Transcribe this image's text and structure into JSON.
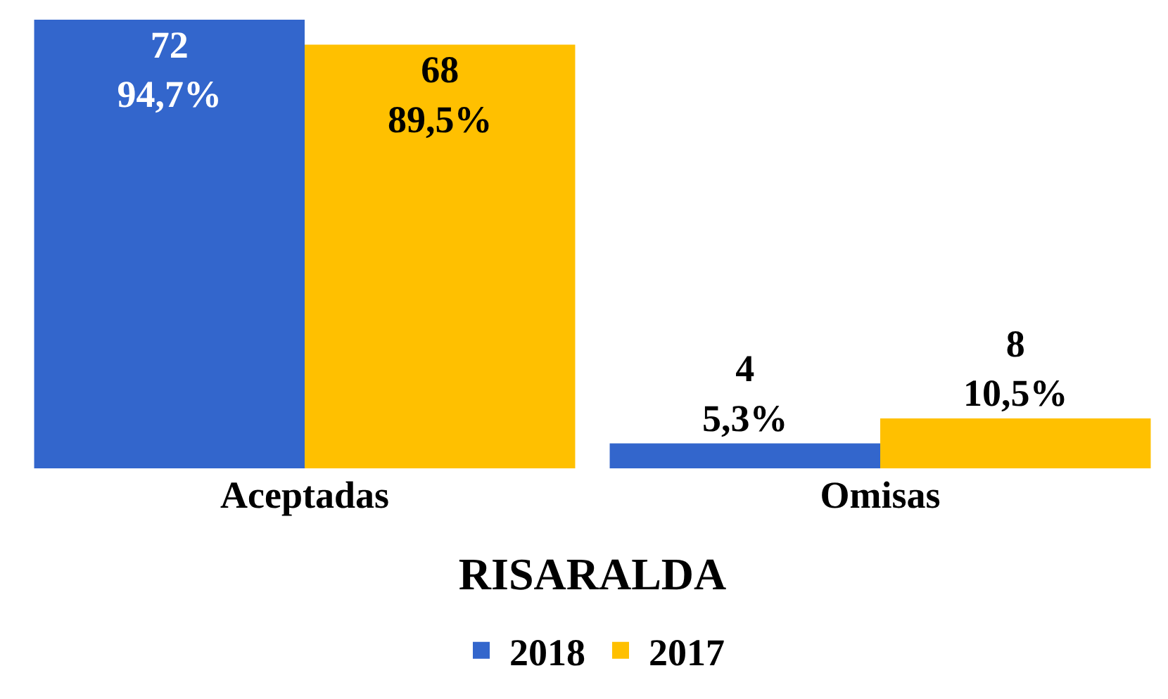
{
  "chart_data": {
    "type": "bar",
    "xlabel": "RISARALDA",
    "categories": [
      "Aceptadas",
      "Omisas"
    ],
    "series": [
      {
        "name": "2018",
        "color": "#3366cc",
        "values": [
          72,
          4
        ],
        "value_labels": [
          "72\n94,7%",
          "4\n5,3%"
        ]
      },
      {
        "name": "2017",
        "color": "#ffc000",
        "values": [
          68,
          8
        ],
        "value_labels": [
          "68\n89,5%",
          "8\n10,5%"
        ]
      }
    ],
    "legend": "bottom",
    "tick_labels": "x"
  }
}
